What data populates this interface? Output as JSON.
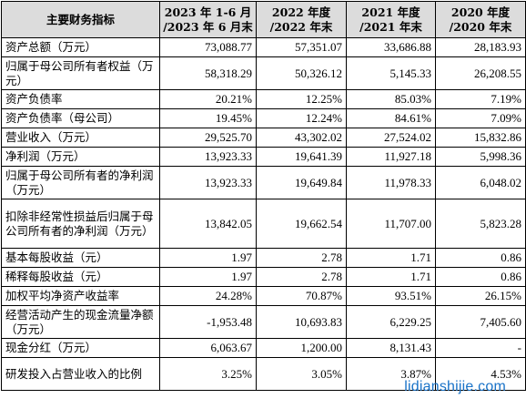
{
  "header": {
    "label": "主要财务指标",
    "periods": [
      "2023 年 1-6 月\n/2023 年 6 月末",
      "2022 年度\n/2022 年末",
      "2021 年度\n/2021 年末",
      "2020 年度\n/2020 年末"
    ]
  },
  "rows": [
    {
      "label": "资产总额（万元）",
      "values": [
        "73,088.77",
        "57,351.07",
        "33,686.88",
        "28,183.93"
      ]
    },
    {
      "label": "归属于母公司所有者权益（万元）",
      "values": [
        "58,318.29",
        "50,326.12",
        "5,145.33",
        "26,208.55"
      ]
    },
    {
      "label": "资产负债率",
      "values": [
        "20.21%",
        "12.25%",
        "85.03%",
        "7.19%"
      ]
    },
    {
      "label": "资产负债率（母公司）",
      "values": [
        "19.45%",
        "12.24%",
        "84.61%",
        "7.09%"
      ]
    },
    {
      "label": "营业收入（万元）",
      "values": [
        "29,525.70",
        "43,302.02",
        "27,524.02",
        "15,832.86"
      ]
    },
    {
      "label": "净利润（万元）",
      "values": [
        "13,923.33",
        "19,641.39",
        "11,927.18",
        "5,998.36"
      ]
    },
    {
      "label": "归属于母公司所有者的净利润（万元）",
      "values": [
        "13,923.33",
        "19,649.84",
        "11,978.33",
        "6,048.02"
      ]
    },
    {
      "label": "扣除非经常性损益后归属于母公司所有者的净利润（万元）",
      "values": [
        "13,842.05",
        "19,662.54",
        "11,707.00",
        "5,823.28"
      ]
    },
    {
      "label": "基本每股收益（元）",
      "values": [
        "1.97",
        "2.78",
        "1.71",
        "0.86"
      ]
    },
    {
      "label": "稀释每股收益（元）",
      "values": [
        "1.97",
        "2.78",
        "1.71",
        "0.86"
      ]
    },
    {
      "label": "加权平均净资产收益率",
      "values": [
        "24.28%",
        "70.87%",
        "93.51%",
        "26.15%"
      ]
    },
    {
      "label": "经营活动产生的现金流量净额（万元）",
      "values": [
        "-1,953.48",
        "10,693.83",
        "6,229.25",
        "7,405.60"
      ]
    },
    {
      "label": "现金分红（万元）",
      "values": [
        "6,063.67",
        "1,200.00",
        "8,131.43",
        "-"
      ]
    },
    {
      "label": "研发投入占营业收入的比例",
      "values": [
        "3.25%",
        "3.05%",
        "3.87%",
        "4.53%"
      ]
    }
  ],
  "watermark": "lidianshijie.com"
}
